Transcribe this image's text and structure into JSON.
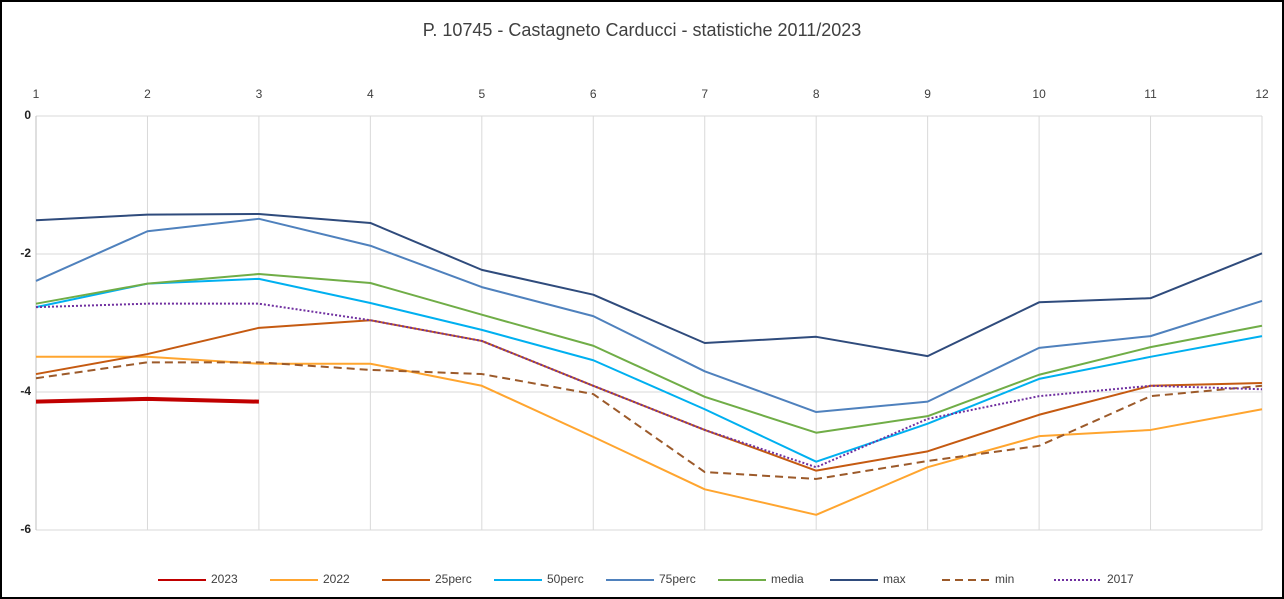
{
  "chart_data": {
    "type": "line",
    "title": "P. 10745 - Castagneto Carducci - statistiche 2011/2023",
    "categories": [
      "1",
      "2",
      "3",
      "4",
      "5",
      "6",
      "7",
      "8",
      "9",
      "10",
      "11",
      "12"
    ],
    "ylim": [
      -6,
      0
    ],
    "yticks": [
      -6,
      -4,
      -2,
      0
    ],
    "grid": true,
    "legend": "bottom",
    "series": [
      {
        "name": "2023",
        "color": "#c00000",
        "style": "thick",
        "values": [
          -4.14,
          -4.1,
          -4.14,
          null,
          null,
          null,
          null,
          null,
          null,
          null,
          null,
          null
        ]
      },
      {
        "name": "2022",
        "color": "#ffa52f",
        "style": "solid",
        "values": [
          -3.49,
          -3.49,
          -3.59,
          -3.59,
          -3.91,
          -4.65,
          -5.41,
          -5.78,
          -5.09,
          -4.64,
          -4.55,
          -4.25
        ]
      },
      {
        "name": "25perc",
        "color": "#c55a11",
        "style": "solid",
        "values": [
          -3.74,
          -3.45,
          -3.07,
          -2.96,
          -3.26,
          -3.91,
          -4.55,
          -5.14,
          -4.86,
          -4.33,
          -3.91,
          -3.87
        ]
      },
      {
        "name": "50perc",
        "color": "#00b0f0",
        "style": "solid",
        "values": [
          -2.77,
          -2.43,
          -2.36,
          -2.71,
          -3.1,
          -3.54,
          -4.25,
          -5.01,
          -4.46,
          -3.81,
          -3.49,
          -3.19
        ]
      },
      {
        "name": "75perc",
        "color": "#4f81bd",
        "style": "solid",
        "values": [
          -2.39,
          -1.67,
          -1.49,
          -1.88,
          -2.48,
          -2.9,
          -3.7,
          -4.29,
          -4.14,
          -3.36,
          -3.19,
          -2.68
        ]
      },
      {
        "name": "media",
        "color": "#70ad47",
        "style": "solid",
        "values": [
          -2.72,
          -2.43,
          -2.29,
          -2.42,
          -2.88,
          -3.33,
          -4.07,
          -4.59,
          -4.35,
          -3.75,
          -3.35,
          -3.04
        ]
      },
      {
        "name": "max",
        "color": "#2f4b7c",
        "style": "solid",
        "values": [
          -1.51,
          -1.43,
          -1.42,
          -1.55,
          -2.23,
          -2.59,
          -3.29,
          -3.2,
          -3.48,
          -2.7,
          -2.64,
          -1.99
        ]
      },
      {
        "name": "min",
        "color": "#9c5a2a",
        "style": "dashed",
        "values": [
          -3.8,
          -3.57,
          -3.57,
          -3.68,
          -3.74,
          -4.03,
          -5.16,
          -5.26,
          -5.0,
          -4.78,
          -4.06,
          -3.91
        ]
      },
      {
        "name": "2017",
        "color": "#7030a0",
        "style": "dotted",
        "values": [
          -2.77,
          -2.72,
          -2.72,
          -2.96,
          -3.26,
          -3.91,
          -4.55,
          -5.09,
          -4.39,
          -4.06,
          -3.91,
          -3.96
        ]
      }
    ]
  }
}
